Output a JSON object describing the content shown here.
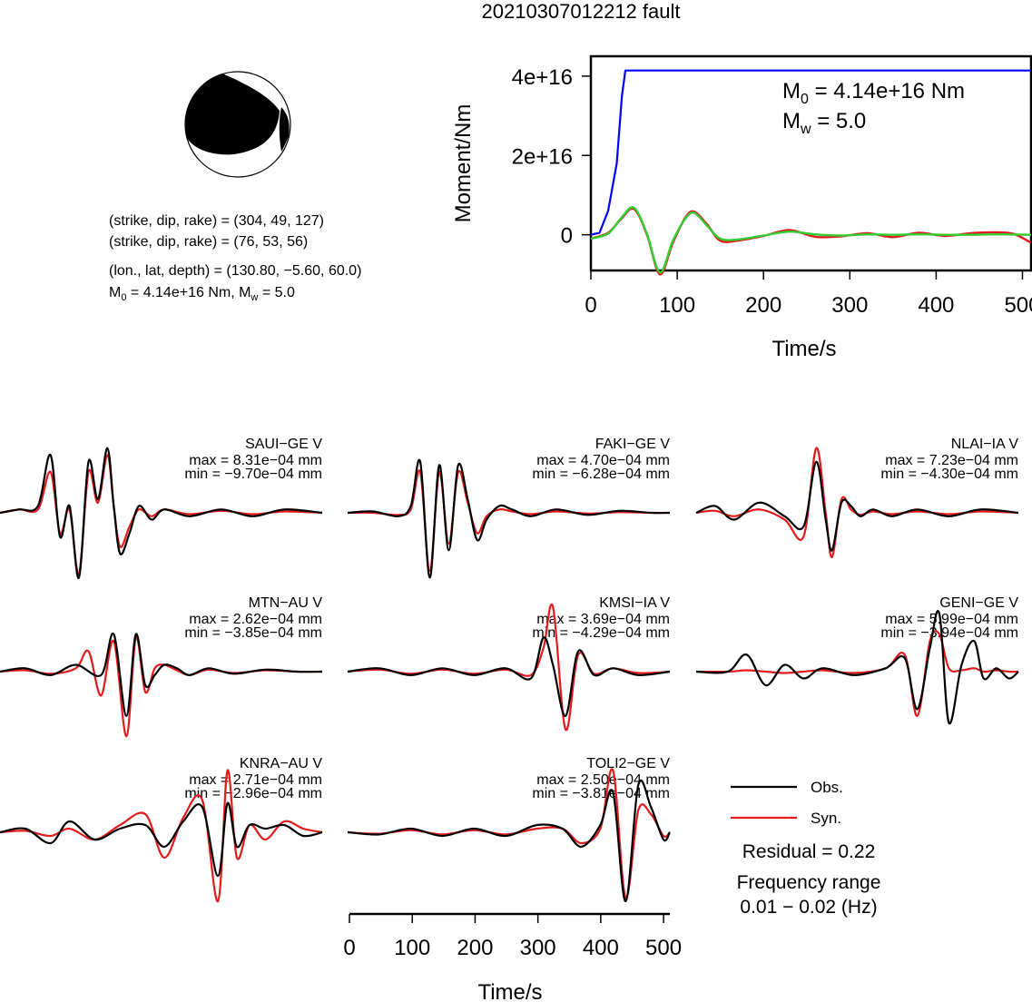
{
  "figure": {
    "title": "20210307012212 fault"
  },
  "event_info": {
    "line1": "(strike, dip, rake) = (304, 49, 127)",
    "line2": "(strike, dip, rake) = (76, 53, 56)",
    "line3": "(lon., lat, depth) = (130.80, −5.60, 60.0)",
    "m0_prefix": "M",
    "m0_sub": "0",
    "m0_rest": " = 4.14e+16 Nm, M",
    "mw_sub": "w",
    "mw_rest": " = 5.0"
  },
  "moment_plot": {
    "ylabel": "Moment/Nm",
    "xlabel": "Time/s",
    "annot_m0_prefix": "M",
    "annot_m0_sub": "0",
    "annot_m0_rest": " = 4.14e+16 Nm",
    "annot_mw_prefix": "M",
    "annot_mw_sub": "w",
    "annot_mw_rest": " = 5.0",
    "colors": {
      "cumulative": "#0000ff",
      "rate_obs": "#e31a1c",
      "rate_fit": "#33cc33"
    }
  },
  "chart_data": [
    {
      "type": "line",
      "title": "",
      "xlabel": "Time/s",
      "ylabel": "Moment/Nm",
      "xlim": [
        0,
        510
      ],
      "ylim": [
        -9000000000000000.0,
        4.5e+16
      ],
      "xticks": [
        0,
        100,
        200,
        300,
        400,
        500
      ],
      "xtick_labels": [
        "0",
        "100",
        "200",
        "300",
        "400",
        "500"
      ],
      "yticks": [
        0,
        2e+16,
        4e+16
      ],
      "ytick_labels": [
        "0",
        "2e+16",
        "4e+16"
      ],
      "series": [
        {
          "name": "cumulative moment",
          "color": "#0000ff",
          "x": [
            0,
            10,
            20,
            30,
            36,
            40,
            510
          ],
          "y": [
            0,
            500000000000000.0,
            6000000000000000.0,
            1.8e+16,
            3.5e+16,
            4.14e+16,
            4.14e+16
          ]
        },
        {
          "name": "moment rate",
          "color": "#e31a1c",
          "x": [
            0,
            20,
            35,
            50,
            65,
            80,
            95,
            110,
            120,
            135,
            150,
            170,
            200,
            230,
            260,
            290,
            320,
            350,
            380,
            410,
            440,
            470,
            490,
            510
          ],
          "y": [
            -1000000000000000.0,
            500000000000000.0,
            4000000000000000.0,
            6500000000000000.0,
            0.0,
            -1e+16,
            -2000000000000000.0,
            4500000000000000.0,
            5800000000000000.0,
            2500000000000000.0,
            -1500000000000000.0,
            -1500000000000000.0,
            -300000000000000.0,
            1200000000000000.0,
            -500000000000000.0,
            -400000000000000.0,
            400000000000000.0,
            -600000000000000.0,
            500000000000000.0,
            -300000000000000.0,
            400000000000000.0,
            600000000000000.0,
            200000000000000.0,
            -2000000000000000.0
          ]
        },
        {
          "name": "moment rate fit",
          "color": "#33cc33",
          "x": [
            0,
            20,
            35,
            50,
            65,
            80,
            95,
            110,
            120,
            135,
            150,
            170,
            200,
            230,
            260,
            290,
            320,
            350,
            380,
            410,
            440,
            470,
            510
          ],
          "y": [
            -1000000000000000.0,
            300000000000000.0,
            4200000000000000.0,
            6800000000000000.0,
            200000000000000.0,
            -9500000000000000.0,
            -1500000000000000.0,
            4200000000000000.0,
            5500000000000000.0,
            2200000000000000.0,
            -1000000000000000.0,
            -1200000000000000.0,
            -200000000000000.0,
            800000000000000.0,
            100000000000000.0,
            -200000000000000.0,
            100000000000000.0,
            0.0,
            100000000000000.0,
            0.0,
            0.0,
            100000000000000.0,
            0.0
          ]
        }
      ]
    },
    {
      "type": "line",
      "title": "SAUI−GE V",
      "xlim": [
        0,
        510
      ],
      "max_label": "max = 8.31e−04 mm",
      "min_label": "min = −9.70e−04 mm",
      "series": [
        {
          "name": "Obs.",
          "color": "#000000",
          "x": [
            0,
            30,
            60,
            80,
            95,
            110,
            125,
            140,
            155,
            170,
            180,
            190,
            205,
            220,
            240,
            260,
            300,
            350,
            400,
            450,
            510
          ],
          "y": [
            0,
            0.05,
            0.1,
            0.85,
            -0.35,
            0.1,
            -0.95,
            0.75,
            0.2,
            0.95,
            0.1,
            -0.6,
            -0.3,
            0.1,
            -0.1,
            0.05,
            -0.05,
            0.05,
            -0.05,
            0.05,
            0
          ]
        },
        {
          "name": "Syn.",
          "color": "#e31a1c",
          "x": [
            0,
            30,
            60,
            80,
            95,
            110,
            125,
            140,
            155,
            170,
            180,
            190,
            205,
            220,
            240,
            260,
            300,
            350,
            400,
            450,
            510
          ],
          "y": [
            0,
            0.05,
            0.05,
            0.6,
            -0.3,
            0.05,
            -0.9,
            0.6,
            0.15,
            0.85,
            0.1,
            -0.5,
            -0.2,
            0.05,
            -0.05,
            0.05,
            -0.02,
            0.03,
            -0.02,
            0.02,
            0
          ]
        }
      ]
    },
    {
      "type": "line",
      "title": "FAKI−GE V",
      "xlim": [
        0,
        510
      ],
      "max_label": "max = 4.70e−04 mm",
      "min_label": "min = −6.28e−04 mm",
      "series": [
        {
          "name": "Obs.",
          "color": "#000000",
          "x": [
            0,
            40,
            80,
            100,
            115,
            130,
            145,
            160,
            175,
            190,
            205,
            220,
            240,
            260,
            290,
            330,
            380,
            430,
            480,
            510
          ],
          "y": [
            0,
            0.02,
            -0.05,
            0.1,
            0.75,
            -0.95,
            0.7,
            -0.55,
            0.7,
            0.2,
            -0.4,
            -0.1,
            0.1,
            0.05,
            -0.05,
            0.05,
            -0.03,
            0.03,
            0.0,
            0
          ]
        },
        {
          "name": "Syn.",
          "color": "#e31a1c",
          "x": [
            0,
            40,
            80,
            100,
            115,
            130,
            145,
            160,
            175,
            190,
            205,
            220,
            240,
            260,
            290,
            330,
            380,
            430,
            480,
            510
          ],
          "y": [
            0,
            0.0,
            -0.03,
            0.05,
            0.6,
            -0.85,
            0.6,
            -0.45,
            0.6,
            0.15,
            -0.3,
            -0.05,
            0.05,
            0.02,
            -0.02,
            0.02,
            -0.01,
            0.01,
            0.0,
            0
          ]
        }
      ]
    },
    {
      "type": "line",
      "title": "NLAI−IA V",
      "xlim": [
        0,
        510
      ],
      "max_label": "max = 7.23e−04 mm",
      "min_label": "min = −4.30e−04 mm",
      "series": [
        {
          "name": "Obs.",
          "color": "#000000",
          "x": [
            0,
            30,
            60,
            100,
            140,
            170,
            190,
            205,
            215,
            230,
            245,
            260,
            280,
            310,
            350,
            400,
            450,
            510
          ],
          "y": [
            0,
            0.1,
            -0.1,
            0.15,
            -0.05,
            -0.2,
            0.75,
            -0.1,
            -0.55,
            0.15,
            0.1,
            -0.05,
            0.05,
            -0.05,
            0.05,
            -0.05,
            0.05,
            0
          ]
        },
        {
          "name": "Syn.",
          "color": "#e31a1c",
          "x": [
            0,
            30,
            60,
            100,
            140,
            170,
            190,
            205,
            215,
            230,
            245,
            260,
            280,
            310,
            350,
            400,
            450,
            510
          ],
          "y": [
            0,
            0.03,
            -0.05,
            0.05,
            -0.1,
            -0.35,
            0.95,
            0.0,
            -0.65,
            0.2,
            0.05,
            -0.03,
            0.02,
            -0.02,
            0.02,
            -0.02,
            0.02,
            0
          ]
        }
      ]
    },
    {
      "type": "line",
      "title": "MTN−AU V",
      "xlim": [
        0,
        510
      ],
      "max_label": "max = 2.62e−04 mm",
      "min_label": "min = −3.85e−04 mm",
      "series": [
        {
          "name": "Obs.",
          "color": "#000000",
          "x": [
            0,
            40,
            80,
            120,
            160,
            180,
            200,
            215,
            230,
            245,
            260,
            280,
            300,
            330,
            370,
            420,
            470,
            510
          ],
          "y": [
            0,
            0.05,
            -0.05,
            0.1,
            -0.05,
            0.55,
            -0.65,
            0.55,
            -0.2,
            -0.05,
            0.1,
            0.05,
            -0.05,
            0.05,
            -0.03,
            0.03,
            0.0,
            0
          ]
        },
        {
          "name": "Syn.",
          "color": "#e31a1c",
          "x": [
            0,
            40,
            80,
            120,
            140,
            160,
            180,
            200,
            215,
            230,
            245,
            260,
            280,
            300,
            330,
            370,
            420,
            470,
            510
          ],
          "y": [
            0,
            0.02,
            -0.03,
            0.05,
            0.3,
            -0.35,
            0.45,
            -0.95,
            0.5,
            -0.3,
            0.05,
            0.1,
            0.02,
            -0.05,
            0.03,
            -0.02,
            0.02,
            0.0,
            0
          ]
        }
      ]
    },
    {
      "type": "line",
      "title": "KMSI−IA V",
      "xlim": [
        0,
        510
      ],
      "max_label": "max = 3.69e−04 mm",
      "min_label": "min = −4.29e−04 mm",
      "series": [
        {
          "name": "Obs.",
          "color": "#000000",
          "x": [
            0,
            50,
            100,
            150,
            200,
            250,
            290,
            310,
            325,
            345,
            365,
            390,
            420,
            460,
            510
          ],
          "y": [
            0,
            0.05,
            -0.05,
            0.05,
            -0.05,
            0.05,
            -0.1,
            0.5,
            0.1,
            -0.65,
            0.3,
            -0.05,
            0.05,
            -0.05,
            0
          ]
        },
        {
          "name": "Syn.",
          "color": "#e31a1c",
          "x": [
            0,
            50,
            100,
            150,
            200,
            250,
            290,
            310,
            325,
            345,
            365,
            390,
            420,
            460,
            510
          ],
          "y": [
            0,
            0.03,
            -0.03,
            0.03,
            -0.03,
            0.03,
            -0.05,
            0.35,
            0.95,
            -0.85,
            0.25,
            -0.03,
            0.05,
            -0.02,
            0
          ]
        }
      ]
    },
    {
      "type": "line",
      "title": "GENI−GE V",
      "xlim": [
        0,
        510
      ],
      "max_label": "max = 5.99e−04 mm",
      "min_label": "min = −3.94e−04 mm",
      "series": [
        {
          "name": "Obs.",
          "color": "#000000",
          "x": [
            0,
            50,
            80,
            110,
            140,
            170,
            200,
            250,
            300,
            330,
            350,
            370,
            385,
            400,
            420,
            440,
            455,
            475,
            495,
            510
          ],
          "y": [
            0,
            0.0,
            0.25,
            -0.2,
            0.1,
            -0.1,
            0.05,
            -0.05,
            0.05,
            0.2,
            -0.55,
            0.35,
            0.85,
            -0.75,
            0.1,
            0.45,
            -0.1,
            0.05,
            -0.1,
            0
          ]
        },
        {
          "name": "Syn.",
          "color": "#e31a1c",
          "x": [
            0,
            50,
            80,
            110,
            140,
            170,
            200,
            250,
            300,
            330,
            350,
            370,
            385,
            400,
            420,
            440,
            455,
            475,
            495,
            510
          ],
          "y": [
            0,
            0.0,
            0.02,
            0.0,
            -0.02,
            0.0,
            0.02,
            -0.02,
            0.05,
            0.25,
            -0.65,
            0.45,
            0.55,
            0.05,
            0.02,
            0.05,
            0.0,
            0.02,
            0.0,
            0
          ]
        }
      ]
    },
    {
      "type": "line",
      "title": "KNRA−AU V",
      "xlim": [
        0,
        510
      ],
      "max_label": "max = 2.71e−04 mm",
      "min_label": "min = −2.96e−04 mm",
      "series": [
        {
          "name": "Obs.",
          "color": "#000000",
          "x": [
            0,
            40,
            80,
            110,
            150,
            190,
            230,
            260,
            290,
            320,
            345,
            360,
            375,
            395,
            420,
            450,
            480,
            510
          ],
          "y": [
            0,
            0.05,
            -0.15,
            0.15,
            -0.1,
            0.05,
            0.1,
            -0.2,
            0.15,
            0.35,
            -0.6,
            0.4,
            -0.2,
            0.1,
            0.05,
            0.1,
            -0.05,
            0
          ]
        },
        {
          "name": "Syn.",
          "color": "#e31a1c",
          "x": [
            0,
            40,
            80,
            110,
            150,
            190,
            230,
            260,
            290,
            320,
            345,
            360,
            375,
            395,
            420,
            450,
            480,
            510
          ],
          "y": [
            0,
            0.02,
            -0.05,
            0.05,
            -0.1,
            0.1,
            0.25,
            -0.35,
            0.2,
            0.45,
            -0.95,
            0.85,
            -0.35,
            0.1,
            -0.1,
            0.15,
            0.05,
            0
          ]
        }
      ]
    },
    {
      "type": "line",
      "title": "TOLI2−GE V",
      "xlim": [
        0,
        510
      ],
      "max_label": "max = 2.50e−04 mm",
      "min_label": "min = −3.81e−04 mm",
      "series": [
        {
          "name": "Obs.",
          "color": "#000000",
          "x": [
            0,
            50,
            100,
            150,
            200,
            250,
            300,
            340,
            370,
            400,
            420,
            440,
            460,
            480,
            500,
            510
          ],
          "y": [
            0,
            -0.03,
            0.05,
            -0.05,
            0.05,
            -0.05,
            0.1,
            0.05,
            -0.2,
            0.1,
            0.55,
            -0.95,
            0.65,
            0.35,
            -0.1,
            0
          ]
        },
        {
          "name": "Syn.",
          "color": "#e31a1c",
          "x": [
            0,
            50,
            100,
            150,
            200,
            250,
            300,
            340,
            370,
            400,
            420,
            440,
            460,
            480,
            500,
            510
          ],
          "y": [
            0,
            -0.02,
            0.03,
            -0.03,
            0.03,
            -0.03,
            0.05,
            0.05,
            -0.15,
            0.05,
            0.85,
            -0.9,
            0.3,
            0.25,
            -0.05,
            0
          ]
        }
      ]
    }
  ],
  "waveform_axis": {
    "xlabel": "Time/s",
    "xticks": [
      0,
      100,
      200,
      300,
      400,
      500
    ],
    "xtick_labels": [
      "0",
      "100",
      "200",
      "300",
      "400",
      "500"
    ]
  },
  "legend": {
    "obs_label": "Obs.",
    "syn_label": "Syn.",
    "obs_color": "#000000",
    "syn_color": "#e31a1c"
  },
  "stats": {
    "residual": "Residual = 0.22",
    "freq_label": "Frequency range",
    "freq_value": "0.01 − 0.02 (Hz)"
  }
}
